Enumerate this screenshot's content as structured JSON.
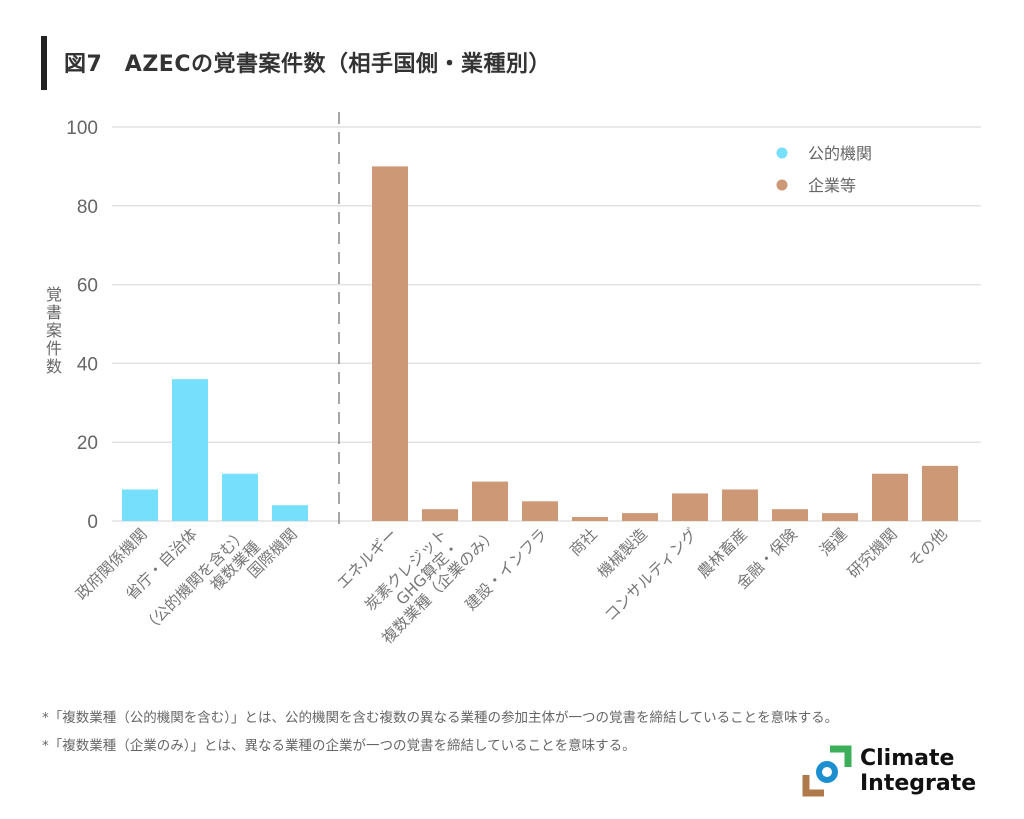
{
  "header": {
    "title": "図7　AZECの覚書案件数（相手国側・業種別）"
  },
  "chart_data": {
    "type": "bar",
    "title": "図7　AZECの覚書案件数（相手国側・業種別）",
    "xlabel": "",
    "ylabel": "覚書案件数",
    "ylim": [
      0,
      100
    ],
    "yticks": [
      0,
      20,
      40,
      60,
      80,
      100
    ],
    "grid": true,
    "legend_position": "upper right",
    "colors": {
      "公的機関": "#75dffc",
      "企業等": "#cc9875"
    },
    "categories": [
      "政府関係機関",
      "省庁・自治体",
      "複数業種（公的機関を含む）",
      "国際機関",
      "エネルギー",
      "GHG算定・炭素クレジット",
      "複数業種（企業のみ）",
      "建設・インフラ",
      "商社",
      "機械製造",
      "コンサルティング",
      "農林畜産",
      "金融・保険",
      "海運",
      "研究機関",
      "その他"
    ],
    "series": [
      {
        "name": "公的機関",
        "values": [
          8,
          36,
          12,
          4,
          null,
          null,
          null,
          null,
          null,
          null,
          null,
          null,
          null,
          null,
          null,
          null
        ]
      },
      {
        "name": "企業等",
        "values": [
          null,
          null,
          null,
          null,
          90,
          3,
          10,
          5,
          1,
          2,
          7,
          8,
          3,
          2,
          12,
          14
        ]
      }
    ],
    "category_labels_display": [
      [
        "政府関係機関"
      ],
      [
        "省庁・自治体"
      ],
      [
        "複数業種",
        "（公的機関を含む）"
      ],
      [
        "国際機関"
      ],
      [
        "エネルギー"
      ],
      [
        "GHG算定・",
        "炭素クレジット"
      ],
      [
        "複数業種（企業のみ）"
      ],
      [
        "建設・インフラ"
      ],
      [
        "商社"
      ],
      [
        "機械製造"
      ],
      [
        "コンサルティング"
      ],
      [
        "農林畜産"
      ],
      [
        "金融・保険"
      ],
      [
        "海運"
      ],
      [
        "研究機関"
      ],
      [
        "その他"
      ]
    ],
    "divider_after_index": 3
  },
  "legend": {
    "items": [
      {
        "label": "公的機関",
        "color": "#75dffc"
      },
      {
        "label": "企業等",
        "color": "#cc9875"
      }
    ]
  },
  "footnotes": [
    "*「複数業種（公的機関を含む）」とは、公的機関を含む複数の異なる業種の参加主体が一つの覚書を締結していることを意味する。",
    "*「複数業種（企業のみ）」とは、異なる業種の企業が一つの覚書を締結していることを意味する。"
  ],
  "logo": {
    "line1": "Climate",
    "line2": "Integrate",
    "colors": {
      "green": "#3dae5a",
      "blue": "#1b8fd0",
      "brown": "#b0794c"
    }
  }
}
